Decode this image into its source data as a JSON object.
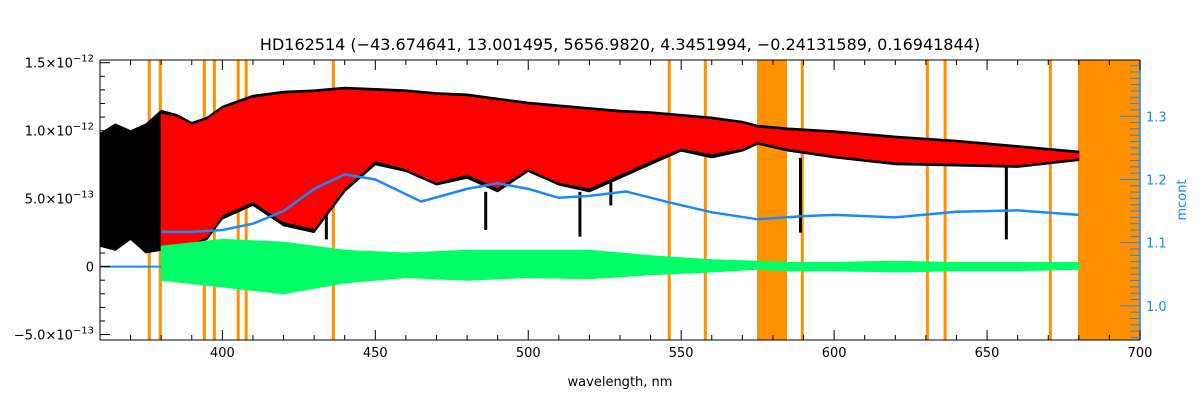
{
  "chart_data": {
    "type": "line",
    "title": "HD162514   (−43.674641, 13.001495, 5656.9820, 4.3451994, −0.24131589, 0.16941844)",
    "xlabel": "wavelength, nm",
    "ylabel_right": "mcont",
    "xlim": [
      360,
      700
    ],
    "ylim": [
      -5.4e-13,
      1.52e-12
    ],
    "ylim_right": [
      0.946,
      1.389
    ],
    "x_ticks": [
      400,
      450,
      500,
      550,
      600,
      650,
      700
    ],
    "x_tick_labels": [
      "400",
      "450",
      "500",
      "550",
      "600",
      "650",
      "700"
    ],
    "y_ticks": [
      -5e-13,
      0,
      5e-13,
      1e-12,
      1.5e-12
    ],
    "y_tick_labels": [
      {
        "mant": "−5.0×10",
        "exp": "−13"
      },
      {
        "mant": "0",
        "exp": ""
      },
      {
        "mant": "5.0×10",
        "exp": "−13"
      },
      {
        "mant": "1.0×10",
        "exp": "−12"
      },
      {
        "mant": "1.5×10",
        "exp": "−12"
      }
    ],
    "y_right_ticks": [
      1.0,
      1.1,
      1.2,
      1.3
    ],
    "y_right_tick_labels": [
      "1.0",
      "1.1",
      "1.2",
      "1.3"
    ],
    "grid": false,
    "colors": {
      "observed": "#000000",
      "model": "#ff0000",
      "residual": "#00ff66",
      "continuum": "#1a88ff",
      "mask": "#ff9100",
      "right_axis": "#1a88ff"
    },
    "masked_regions": [
      [
        375.6,
        376.6
      ],
      [
        379.2,
        380.2
      ],
      [
        393.6,
        394.6
      ],
      [
        396.9,
        397.8
      ],
      [
        404.7,
        405.6
      ],
      [
        407.3,
        408.1
      ],
      [
        435.8,
        436.6
      ],
      [
        545.6,
        546.4
      ],
      [
        557.4,
        558.3
      ],
      [
        574.8,
        584.6
      ],
      [
        589.1,
        589.9
      ],
      [
        630.0,
        630.8
      ],
      [
        635.8,
        636.6
      ],
      [
        670.2,
        671.0
      ],
      [
        679.7,
        700
      ]
    ],
    "observed": {
      "x": [
        360,
        365,
        370,
        375,
        380,
        385,
        390,
        395,
        400,
        410,
        420,
        430,
        440,
        450,
        460,
        470,
        480,
        490,
        500,
        510,
        520,
        530,
        540,
        550,
        560,
        570,
        575,
        585,
        600,
        620,
        640,
        660,
        680
      ],
      "upper": [
        9.8e-13,
        1.05e-12,
        1e-12,
        1.05e-12,
        1.15e-12,
        1.12e-12,
        1.06e-12,
        1.1e-12,
        1.18e-12,
        1.26e-12,
        1.29e-12,
        1.3e-12,
        1.32e-12,
        1.31e-12,
        1.3e-12,
        1.28e-12,
        1.27e-12,
        1.24e-12,
        1.21e-12,
        1.19e-12,
        1.17e-12,
        1.15e-12,
        1.14e-12,
        1.12e-12,
        1.1e-12,
        1.07e-12,
        1.04e-12,
        1.02e-12,
        1e-12,
        9.6e-13,
        9.3e-13,
        8.9e-13,
        8.5e-13
      ],
      "lower": [
        1.5e-13,
        1.2e-13,
        2e-13,
        1e-13,
        1.2e-13,
        1e-13,
        1.5e-13,
        2e-13,
        3.5e-13,
        4.5e-13,
        3e-13,
        2.5e-13,
        5.5e-13,
        7.5e-13,
        7e-13,
        6e-13,
        6.5e-13,
        5.5e-13,
        7e-13,
        6e-13,
        5.5e-13,
        6.5e-13,
        7.5e-13,
        8.5e-13,
        8e-13,
        8.5e-13,
        9e-13,
        8.5e-13,
        8e-13,
        7.5e-13,
        7.4e-13,
        7.3e-13,
        7.8e-13
      ]
    },
    "model": {
      "x": [
        380,
        385,
        390,
        395,
        400,
        410,
        420,
        430,
        440,
        450,
        460,
        470,
        480,
        490,
        500,
        510,
        520,
        530,
        540,
        550,
        560,
        570,
        575,
        585,
        600,
        620,
        640,
        660,
        680
      ],
      "upper": [
        1.12e-12,
        1.1e-12,
        1.04e-12,
        1.08e-12,
        1.16e-12,
        1.24e-12,
        1.27e-12,
        1.28e-12,
        1.3e-12,
        1.29e-12,
        1.28e-12,
        1.26e-12,
        1.25e-12,
        1.22e-12,
        1.19e-12,
        1.17e-12,
        1.15e-12,
        1.13e-12,
        1.12e-12,
        1.1e-12,
        1.08e-12,
        1.05e-12,
        1.02e-12,
        1e-12,
        9.8e-13,
        9.4e-13,
        9.1e-13,
        8.7e-13,
        8.3e-13
      ],
      "lower": [
        1.5e-13,
        1.2e-13,
        1.7e-13,
        2.2e-13,
        3.8e-13,
        4.8e-13,
        3.3e-13,
        2.8e-13,
        5.8e-13,
        7.8e-13,
        7.2e-13,
        6.2e-13,
        6.8e-13,
        5.8e-13,
        7.2e-13,
        6.2e-13,
        5.8e-13,
        6.8e-13,
        7.8e-13,
        8.7e-13,
        8.3e-13,
        8.7e-13,
        9.2e-13,
        8.7e-13,
        8.2e-13,
        7.7e-13,
        7.6e-13,
        7.5e-13,
        8e-13
      ]
    },
    "strong_lines": [
      {
        "x": 434.0,
        "min": 2e-13
      },
      {
        "x": 486.1,
        "min": 2.7e-13
      },
      {
        "x": 516.9,
        "min": 2.2e-13
      },
      {
        "x": 527.0,
        "min": 4.5e-13
      },
      {
        "x": 589.0,
        "min": 2.5e-13
      },
      {
        "x": 656.3,
        "min": 2e-13
      }
    ],
    "residual": {
      "x": [
        380,
        400,
        420,
        440,
        460,
        480,
        500,
        520,
        540,
        560,
        575,
        585,
        600,
        620,
        640,
        660,
        680
      ],
      "upper": [
        1.5e-13,
        2e-13,
        1.8e-13,
        1.2e-13,
        1e-13,
        1.2e-13,
        1.2e-13,
        1.2e-13,
        8e-14,
        5e-14,
        4e-14,
        3e-14,
        3e-14,
        4e-14,
        3e-14,
        3e-14,
        3e-14
      ],
      "lower": [
        -1e-13,
        -1.5e-13,
        -2e-13,
        -1.2e-13,
        -8e-14,
        -1e-13,
        -8e-14,
        -9e-14,
        -6e-14,
        -4e-14,
        -2e-14,
        -3e-14,
        -3e-14,
        -4e-14,
        -3e-14,
        -3e-14,
        -2e-14
      ]
    },
    "continuum": {
      "x": [
        380,
        390,
        400,
        410,
        420,
        430,
        440,
        450,
        465,
        480,
        490,
        500,
        510,
        520,
        532,
        545,
        560,
        575,
        590,
        600,
        620,
        640,
        660,
        680
      ],
      "mcont": [
        1.117,
        1.117,
        1.12,
        1.13,
        1.15,
        1.185,
        1.208,
        1.2,
        1.165,
        1.185,
        1.194,
        1.185,
        1.171,
        1.174,
        1.181,
        1.165,
        1.148,
        1.137,
        1.142,
        1.144,
        1.14,
        1.149,
        1.151,
        1.144
      ]
    }
  }
}
